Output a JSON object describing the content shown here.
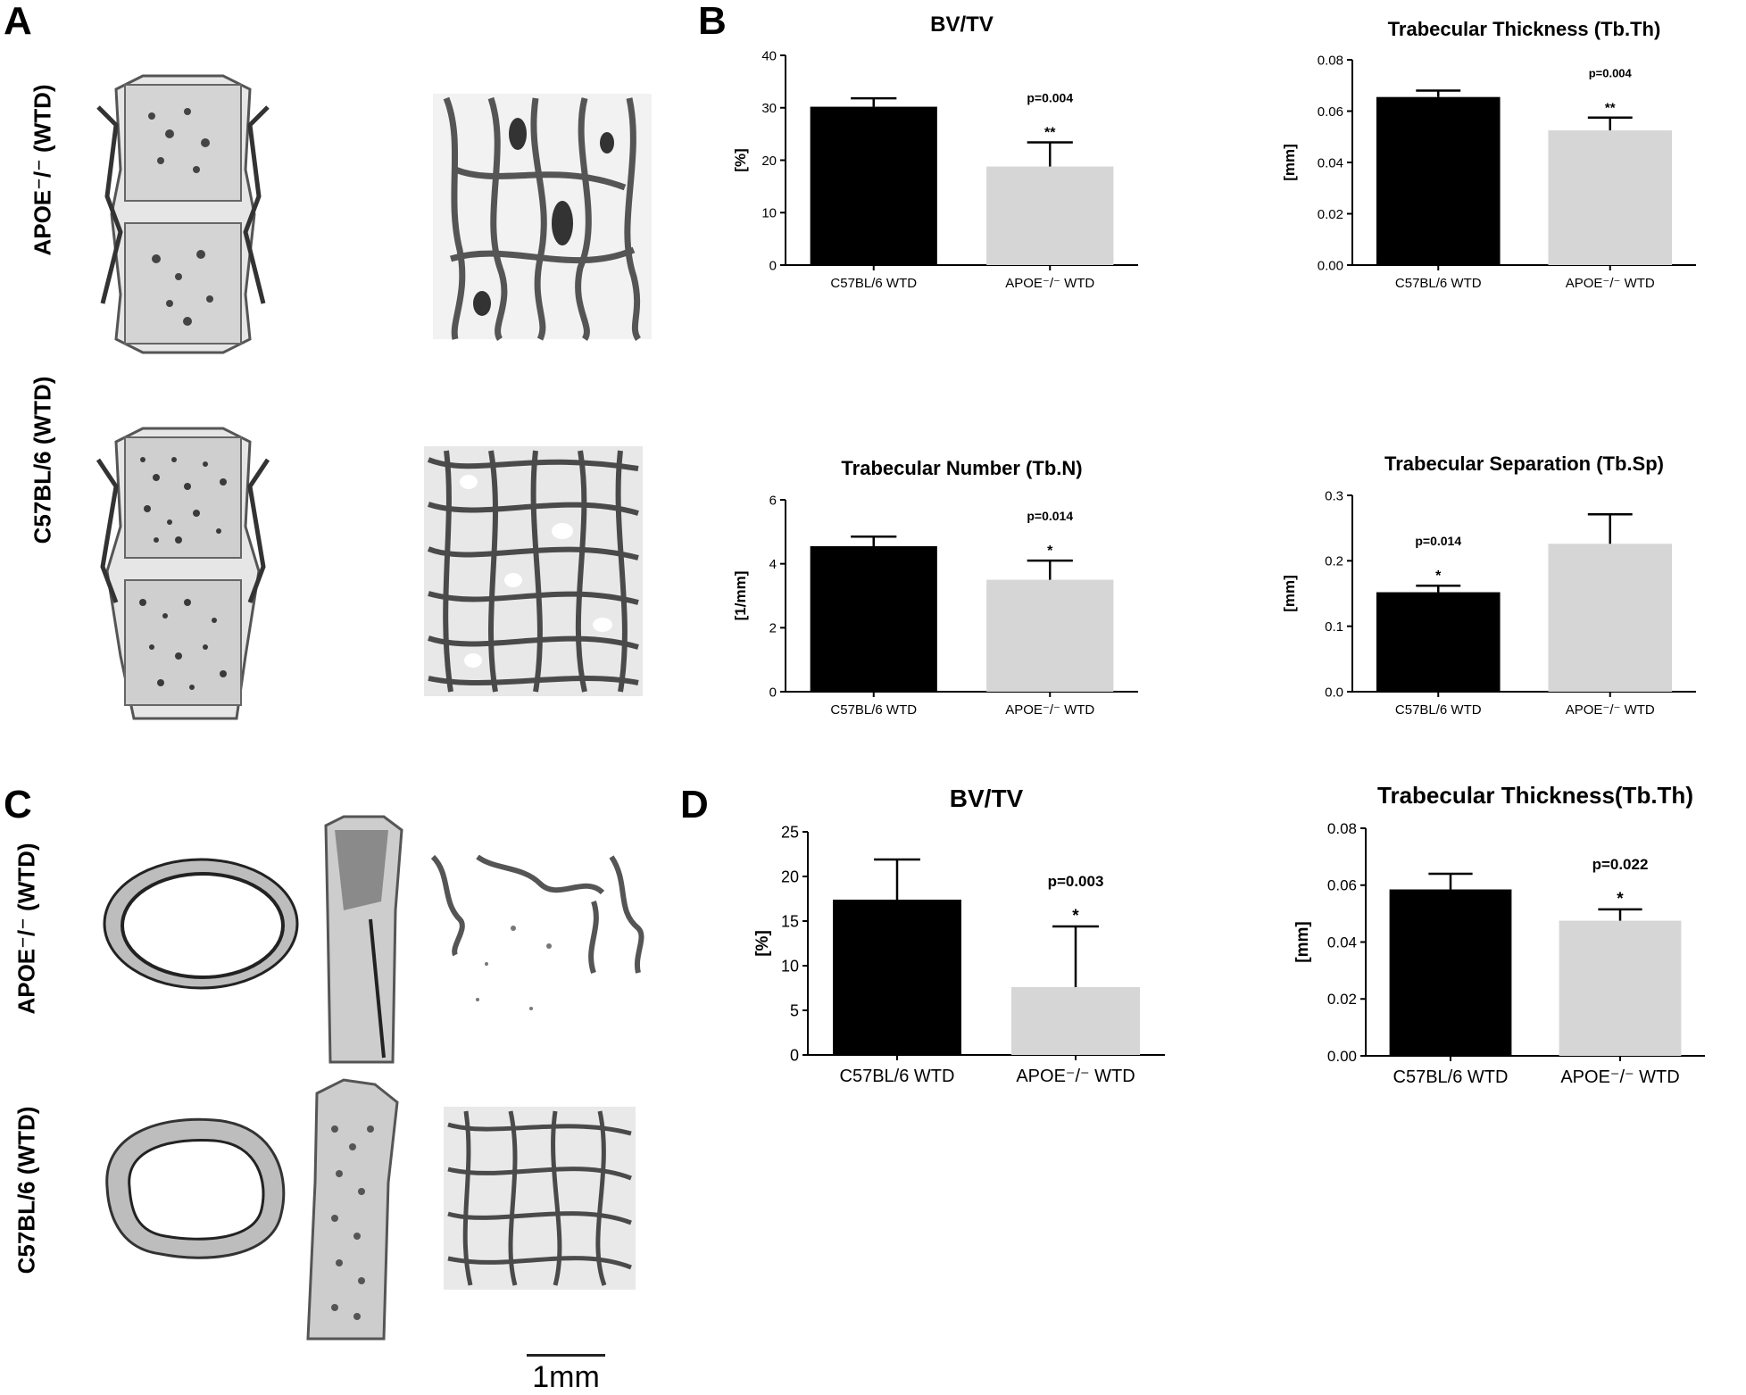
{
  "panels": {
    "A": "A",
    "B": "B",
    "C": "C",
    "D": "D"
  },
  "row_labels": {
    "a_top": "APOE⁻/⁻ (WTD)",
    "a_bottom": "C57BL/6 (WTD)",
    "c_top": "APOE⁻/⁻ (WTD)",
    "c_bottom": "C57BL/6 (WTD)"
  },
  "scale_bar": {
    "label": "1mm"
  },
  "colors": {
    "black_bar": "#000000",
    "grey_bar": "#d6d6d6",
    "axis": "#000000"
  },
  "chart_data": [
    {
      "id": "b1",
      "type": "bar",
      "title": "BV/TV",
      "ylabel": "[%]",
      "categories": [
        "C57BL/6 WTD",
        "APOE⁻/⁻ WTD"
      ],
      "values": [
        30.2,
        18.8
      ],
      "errors": [
        1.6,
        4.6
      ],
      "ylim": [
        0,
        40
      ],
      "yticks": [
        "0",
        "10",
        "20",
        "30",
        "40"
      ],
      "significance": [
        "",
        "**"
      ],
      "pvalue": "p=0.004",
      "p_on": 1
    },
    {
      "id": "b2",
      "type": "bar",
      "title": "Trabecular Thickness (Tb.Th)",
      "ylabel": "[mm]",
      "categories": [
        "C57BL/6 WTD",
        "APOE⁻/⁻ WTD"
      ],
      "values": [
        0.0655,
        0.0525
      ],
      "errors": [
        0.0025,
        0.005
      ],
      "ylim": [
        0,
        0.08
      ],
      "yticks": [
        "0.00",
        "0.02",
        "0.04",
        "0.06",
        "0.08"
      ],
      "significance": [
        "",
        "**"
      ],
      "pvalue": "p=0.004",
      "p_on": 1
    },
    {
      "id": "b3",
      "type": "bar",
      "title": "Trabecular Number (Tb.N)",
      "ylabel": "[1/mm]",
      "categories": [
        "C57BL/6 WTD",
        "APOE⁻/⁻ WTD"
      ],
      "values": [
        4.55,
        3.5
      ],
      "errors": [
        0.3,
        0.6
      ],
      "ylim": [
        0,
        6
      ],
      "yticks": [
        "0",
        "2",
        "4",
        "6"
      ],
      "significance": [
        "",
        "*"
      ],
      "pvalue": "p=0.014",
      "p_on": 1
    },
    {
      "id": "b4",
      "type": "bar",
      "title": "Trabecular Separation (Tb.Sp)",
      "ylabel": "[mm]",
      "categories": [
        "C57BL/6 WTD",
        "APOE⁻/⁻ WTD"
      ],
      "values": [
        0.152,
        0.226
      ],
      "errors": [
        0.01,
        0.045
      ],
      "ylim": [
        0,
        0.3
      ],
      "yticks": [
        "0.0",
        "0.1",
        "0.2",
        "0.3"
      ],
      "significance": [
        "*",
        ""
      ],
      "pvalue": "p=0.014",
      "p_on": 0
    },
    {
      "id": "d1",
      "type": "bar",
      "title": "BV/TV",
      "ylabel": "[%]",
      "categories": [
        "C57BL/6 WTD",
        "APOE⁻/⁻ WTD"
      ],
      "values": [
        17.4,
        7.6
      ],
      "errors": [
        4.5,
        6.8
      ],
      "ylim": [
        0,
        25
      ],
      "yticks": [
        "0",
        "5",
        "10",
        "15",
        "20",
        "25"
      ],
      "significance": [
        "",
        "*"
      ],
      "pvalue": "p=0.003",
      "p_on": 1
    },
    {
      "id": "d2",
      "type": "bar",
      "title": "Trabecular Thickness(Tb.Th)",
      "ylabel": "[mm]",
      "categories": [
        "C57BL/6 WTD",
        "APOE⁻/⁻ WTD"
      ],
      "values": [
        0.0585,
        0.0475
      ],
      "errors": [
        0.0055,
        0.004
      ],
      "ylim": [
        0,
        0.08
      ],
      "yticks": [
        "0.00",
        "0.02",
        "0.04",
        "0.06",
        "0.08"
      ],
      "significance": [
        "",
        "*"
      ],
      "pvalue": "p=0.022",
      "p_on": 1
    }
  ]
}
